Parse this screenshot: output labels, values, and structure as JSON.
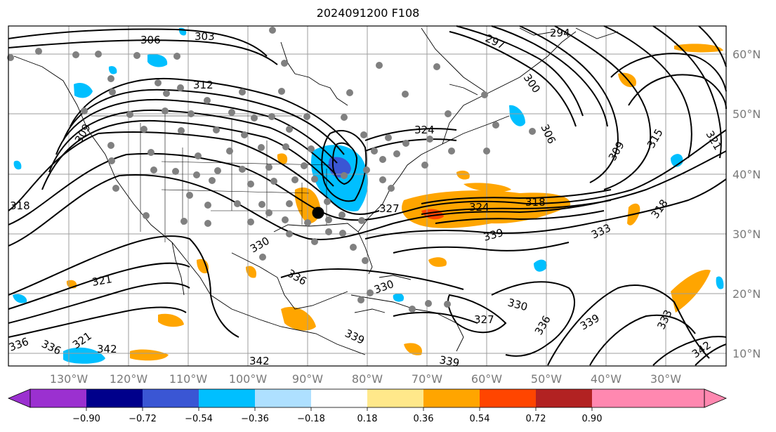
{
  "title": "2024091200 F108",
  "map": {
    "lat_labels": [
      "60°N",
      "50°N",
      "40°N",
      "30°N",
      "20°N",
      "10°N"
    ],
    "lon_labels": [
      "130°W",
      "120°W",
      "110°W",
      "100°W",
      "90°W",
      "80°W",
      "70°W",
      "60°W",
      "50°W",
      "40°W",
      "30°W"
    ],
    "contour_labels": [
      "306",
      "303",
      "297",
      "294",
      "312",
      "309",
      "300",
      "306",
      "309",
      "315",
      "321",
      "324",
      "318",
      "318",
      "327",
      "324",
      "330",
      "333",
      "339",
      "330",
      "336",
      "321",
      "342",
      "336",
      "327",
      "330",
      "336",
      "339",
      "333",
      "342",
      "336",
      "339",
      "339",
      "342",
      "318",
      "321"
    ]
  },
  "colorbar": {
    "ticks": [
      "−0.90",
      "−0.72",
      "−0.54",
      "−0.36",
      "−0.18",
      "0.18",
      "0.36",
      "0.54",
      "0.72",
      "0.90"
    ],
    "colors": [
      "#9b30d0",
      "#00008b",
      "#3a56d4",
      "#00bfff",
      "#aee0ff",
      "#ffffff",
      "#ffe88a",
      "#ffa500",
      "#ff4500",
      "#b22222",
      "#ff88b0",
      "#ff88b0"
    ]
  },
  "colors": {
    "frame": "#000000",
    "grid": "#9e9e9e",
    "label": "#7a7a7a",
    "marker": "#808080"
  }
}
